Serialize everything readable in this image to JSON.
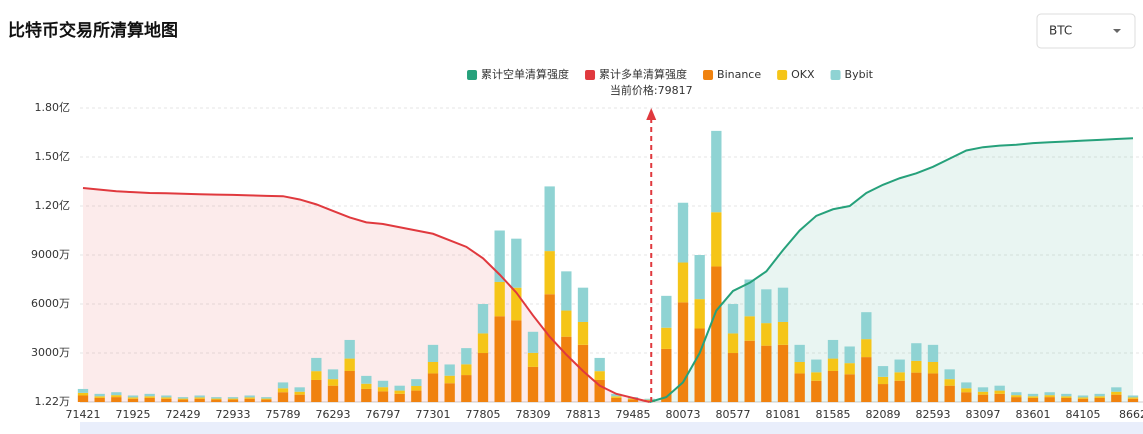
{
  "chart_data": {
    "type": "bar",
    "title": "比特币交易所清算地图",
    "categories": [
      "71421",
      null,
      null,
      "71925",
      null,
      null,
      "72429",
      null,
      null,
      "72933",
      null,
      null,
      "75789",
      null,
      null,
      "76293",
      null,
      null,
      "76797",
      null,
      null,
      "77301",
      null,
      null,
      "77805",
      null,
      null,
      "78309",
      null,
      null,
      "78813",
      null,
      null,
      "79485",
      null,
      null,
      "80073",
      null,
      null,
      "80577",
      null,
      null,
      "81081",
      null,
      null,
      "81585",
      null,
      null,
      "82089",
      null,
      null,
      "82593",
      null,
      null,
      "83097",
      null,
      null,
      "83601",
      null,
      null,
      "84105",
      null,
      null,
      "8662"
    ],
    "series": [
      {
        "name": "累计空单清算强度",
        "type": "line",
        "color": "#26a17b",
        "values": [
          null,
          null,
          null,
          null,
          null,
          null,
          null,
          null,
          null,
          null,
          null,
          null,
          null,
          null,
          null,
          null,
          null,
          null,
          null,
          null,
          null,
          null,
          null,
          null,
          null,
          null,
          null,
          null,
          null,
          null,
          null,
          null,
          null,
          null,
          0,
          300,
          1200,
          3000,
          5600,
          6800,
          7300,
          8000,
          9300,
          10500,
          11400,
          11800,
          12000,
          12800,
          13300,
          13700,
          14000,
          14400,
          14900,
          15400,
          15600,
          15700,
          15750,
          15850,
          15900,
          15950,
          16000,
          16050,
          16100,
          16150
        ]
      },
      {
        "name": "累计多单清算强度",
        "type": "line",
        "color": "#e0393e",
        "values": [
          13100,
          13000,
          12900,
          12850,
          12800,
          12780,
          12750,
          12720,
          12700,
          12680,
          12650,
          12620,
          12600,
          12400,
          12100,
          11700,
          11300,
          11000,
          10900,
          10700,
          10500,
          10300,
          9900,
          9500,
          8800,
          7800,
          6700,
          5300,
          4000,
          2900,
          1900,
          1000,
          500,
          250,
          0,
          null,
          null,
          null,
          null,
          null,
          null,
          null,
          null,
          null,
          null,
          null,
          null,
          null,
          null,
          null,
          null,
          null,
          null,
          null,
          null,
          null,
          null,
          null,
          null,
          null,
          null,
          null,
          null,
          null
        ]
      },
      {
        "name": "Binance",
        "type": "bar",
        "color": "#f0820f",
        "values": [
          400,
          250,
          300,
          200,
          250,
          200,
          150,
          200,
          150,
          150,
          200,
          150,
          600,
          450,
          1350,
          1000,
          1900,
          800,
          650,
          500,
          700,
          1750,
          1150,
          1650,
          3000,
          5250,
          5000,
          2150,
          6600,
          4000,
          3500,
          1350,
          250,
          150,
          100,
          3250,
          6100,
          4500,
          8300,
          3000,
          3750,
          3450,
          3500,
          1750,
          1300,
          1900,
          1700,
          2750,
          1100,
          1300,
          1800,
          1750,
          1000,
          600,
          450,
          500,
          300,
          250,
          300,
          250,
          200,
          250,
          450,
          200
        ]
      },
      {
        "name": "OKX",
        "type": "bar",
        "color": "#f5c518",
        "values": [
          160,
          100,
          120,
          80,
          100,
          80,
          60,
          80,
          60,
          60,
          80,
          60,
          240,
          180,
          540,
          400,
          760,
          320,
          260,
          200,
          280,
          700,
          460,
          660,
          1200,
          2100,
          2000,
          860,
          2640,
          1600,
          1400,
          540,
          100,
          60,
          40,
          1300,
          2440,
          1800,
          3320,
          1200,
          1500,
          1380,
          1400,
          700,
          520,
          760,
          680,
          1100,
          440,
          520,
          720,
          700,
          400,
          240,
          180,
          200,
          120,
          100,
          120,
          100,
          80,
          100,
          180,
          80
        ]
      },
      {
        "name": "Bybit",
        "type": "bar",
        "color": "#8fd3d3",
        "values": [
          240,
          150,
          180,
          120,
          150,
          120,
          90,
          120,
          90,
          90,
          120,
          90,
          360,
          270,
          810,
          600,
          1140,
          480,
          390,
          300,
          420,
          1050,
          690,
          990,
          1800,
          3150,
          3000,
          1290,
          3960,
          2400,
          2100,
          810,
          150,
          90,
          60,
          1950,
          3660,
          2700,
          4980,
          1800,
          2250,
          2070,
          2100,
          1050,
          780,
          1140,
          1020,
          1650,
          660,
          780,
          1080,
          1050,
          600,
          360,
          270,
          300,
          180,
          150,
          180,
          150,
          120,
          150,
          270,
          120
        ]
      }
    ],
    "ylim": [
      1.22,
      18000
    ],
    "yticks": [
      {
        "value": 1.22,
        "label": "1.22万"
      },
      {
        "value": 3000,
        "label": "3000万"
      },
      {
        "value": 6000,
        "label": "6000万"
      },
      {
        "value": 9000,
        "label": "9000万"
      },
      {
        "value": 12000,
        "label": "1.20亿"
      },
      {
        "value": 15000,
        "label": "1.50亿"
      },
      {
        "value": 18000,
        "label": "1.80亿"
      }
    ],
    "grid": true,
    "legend": "top",
    "current_price": 79817,
    "current_price_label": "当前价格:79817"
  },
  "dropdown": {
    "value": "BTC"
  }
}
